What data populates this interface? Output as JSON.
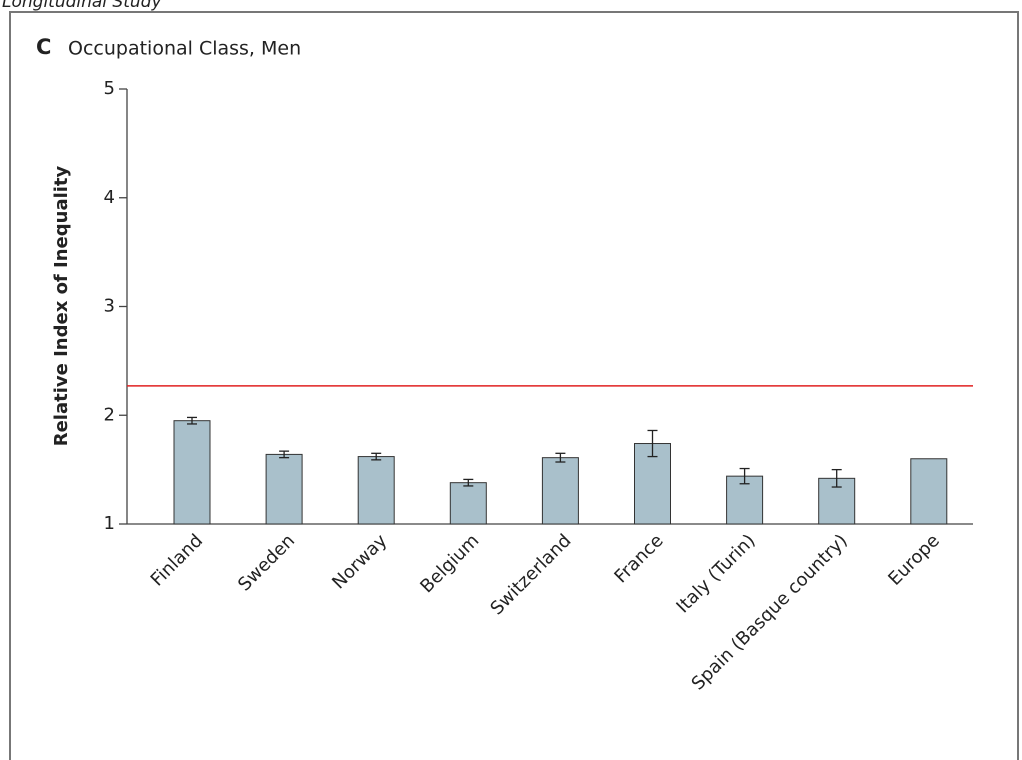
{
  "header": "Longitudinal Study",
  "chart_data": {
    "type": "bar",
    "panel": "C",
    "title": "Occupational Class, Men",
    "y_label": "Relative Index of Inequality",
    "categories": [
      "Finland",
      "Sweden",
      "Norway",
      "Belgium",
      "Switzerland",
      "France",
      "Italy (Turin)",
      "Spain (Basque country)",
      "Europe"
    ],
    "values": [
      1.95,
      1.64,
      1.62,
      1.38,
      1.61,
      1.74,
      1.44,
      1.42,
      1.6
    ],
    "errors": [
      0.03,
      0.03,
      0.03,
      0.03,
      0.04,
      0.12,
      0.07,
      0.08,
      null
    ],
    "color": "#a9c0cb",
    "reference_line": 2.27,
    "reference_color": "#e02020",
    "ylim": [
      1,
      5
    ],
    "yticks": [
      1,
      2,
      3,
      4,
      5
    ]
  }
}
